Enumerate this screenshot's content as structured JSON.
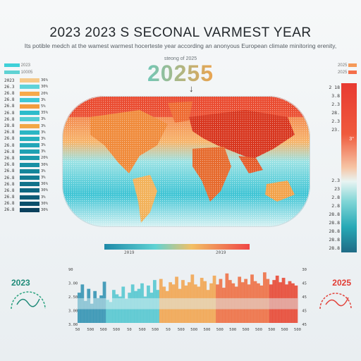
{
  "header": {
    "title": "2023 2023 S SECONAL VARMEST YEAR",
    "subtitle": "Its potible medch at the wamest warmest hocerteste year according an anonyous European climate minitoring erenity,",
    "caption": "steong of 2025",
    "year_banner": "20255"
  },
  "legend_left": {
    "head_a": "2023",
    "head_b": "10005",
    "rows": [
      {
        "label": "2023",
        "num": "36%",
        "color": "#f4c98a"
      },
      {
        "label": "26.3",
        "num": "30%",
        "color": "#5dd3da"
      },
      {
        "label": "26.8",
        "num": "20%",
        "color": "#f7a94a"
      },
      {
        "label": "26.8",
        "num": "3%",
        "color": "#3fc8d6"
      },
      {
        "label": "26.8",
        "num": "5%",
        "color": "#f39c3f"
      },
      {
        "label": "26.8",
        "num": "35%",
        "color": "#2dbccb"
      },
      {
        "label": "26.8",
        "num": "3%",
        "color": "#55ccd2"
      },
      {
        "label": "28.8",
        "num": "3%",
        "color": "#f2a746"
      },
      {
        "label": "26.8",
        "num": "3%",
        "color": "#2bb6c4"
      },
      {
        "label": "26.8",
        "num": "3%",
        "color": "#26b0be"
      },
      {
        "label": "26.8",
        "num": "3%",
        "color": "#22a6b8"
      },
      {
        "label": "26.8",
        "num": "3%",
        "color": "#1fa1b3"
      },
      {
        "label": "26.8",
        "num": "20%",
        "color": "#1b9aac"
      },
      {
        "label": "26.8",
        "num": "30%",
        "color": "#1890a4"
      },
      {
        "label": "26.8",
        "num": "3%",
        "color": "#15869b"
      },
      {
        "label": "26.8",
        "num": "3%",
        "color": "#137c93"
      },
      {
        "label": "26.8",
        "num": "36%",
        "color": "#11728a"
      },
      {
        "label": "26.8",
        "num": "30%",
        "color": "#0f6781"
      },
      {
        "label": "26.8",
        "num": "3%",
        "color": "#0e5c77"
      },
      {
        "label": "26.8",
        "num": "30%",
        "color": "#0c4f6b"
      },
      {
        "label": "26.8",
        "num": "30%",
        "color": "#0b415d"
      }
    ]
  },
  "legend_right": {
    "head_a": "2025",
    "head_b": "2025",
    "labels": [
      "2 18",
      "3.8",
      "2.3",
      "28.",
      "2.3",
      "23.",
      "",
      "",
      "",
      "",
      "",
      "2.3",
      "23",
      "2.8",
      "2.8",
      "28.8",
      "28.8",
      "28.8",
      "28.8",
      "28.8"
    ],
    "mark": "3°"
  },
  "scale": {
    "left_label": "2019",
    "right_label": "2019"
  },
  "bottom": {
    "left_year": "2023",
    "right_year": "2025",
    "x_ticks": [
      "50",
      "500",
      "500",
      "500",
      "50",
      "500",
      "500",
      "50",
      "500",
      "500",
      "500",
      "500",
      "500",
      "500",
      "500",
      "500",
      "500",
      "500"
    ],
    "y_left": [
      "90",
      "3.00",
      "2.50",
      "3.00",
      "3.00"
    ],
    "y_right": [
      "30",
      "45",
      "45",
      "45",
      "45"
    ]
  },
  "chart_data": {
    "type": "area",
    "x": [
      0,
      1,
      2,
      3,
      4,
      5,
      6,
      7,
      8,
      9,
      10,
      11,
      12,
      13,
      14,
      15,
      16,
      17,
      18,
      19,
      20,
      21,
      22,
      23,
      24,
      25,
      26,
      27,
      28,
      29,
      30,
      31,
      32,
      33,
      34,
      35,
      36,
      37,
      38,
      39,
      40,
      41,
      42,
      43,
      44,
      45,
      46,
      47,
      48,
      49,
      50,
      51,
      52,
      53,
      54,
      55,
      56,
      57,
      58,
      59,
      60,
      61,
      62,
      63,
      64,
      65,
      66,
      67,
      68,
      69
    ],
    "values": [
      55,
      70,
      40,
      62,
      35,
      58,
      45,
      50,
      75,
      42,
      38,
      60,
      52,
      48,
      66,
      44,
      55,
      70,
      58,
      62,
      72,
      48,
      68,
      55,
      78,
      60,
      80,
      66,
      58,
      74,
      70,
      84,
      62,
      78,
      68,
      74,
      88,
      70,
      66,
      82,
      76,
      60,
      72,
      86,
      70,
      80,
      64,
      90,
      78,
      72,
      66,
      84,
      74,
      80,
      70,
      88,
      76,
      72,
      68,
      92,
      80,
      70,
      78,
      86,
      74,
      82,
      70,
      76,
      72,
      68
    ]
  },
  "colors": {
    "accent_red": "#ef4646",
    "accent_teal": "#2dbccb",
    "accent_orange": "#f39c3f"
  }
}
